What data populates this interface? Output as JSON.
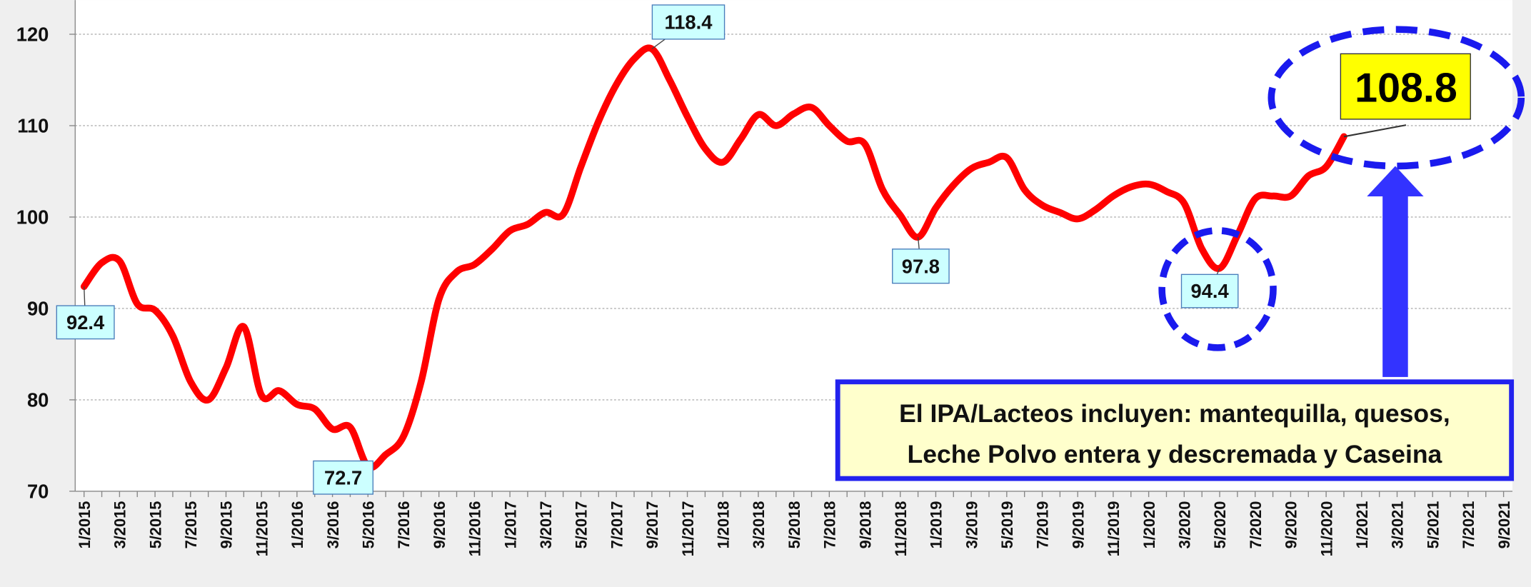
{
  "chart_data": {
    "type": "line",
    "categories": [
      "1/2015",
      null,
      "3/2015",
      null,
      "5/2015",
      null,
      "7/2015",
      null,
      "9/2015",
      null,
      "11/2015",
      null,
      "1/2016",
      null,
      "3/2016",
      null,
      "5/2016",
      null,
      "7/2016",
      null,
      "9/2016",
      null,
      "11/2016",
      null,
      "1/2017",
      null,
      "3/2017",
      null,
      "5/2017",
      null,
      "7/2017",
      null,
      "9/2017",
      null,
      "11/2017",
      null,
      "1/2018",
      null,
      "3/2018",
      null,
      "5/2018",
      null,
      "7/2018",
      null,
      "9/2018",
      null,
      "11/2018",
      null,
      "1/2019",
      null,
      "3/2019",
      null,
      "5/2019",
      null,
      "7/2019",
      null,
      "9/2019",
      null,
      "11/2019",
      null,
      "1/2020",
      null,
      "3/2020",
      null,
      "5/2020",
      null,
      "7/2020",
      null,
      "9/2020",
      null,
      "11/2020",
      null,
      "1/2021",
      null,
      "3/2021",
      null,
      "5/2021",
      null,
      "7/2021",
      null,
      "9/2021"
    ],
    "series": [
      {
        "color": "#ff0000",
        "values": [
          92.4,
          95,
          95.2,
          90.5,
          89.8,
          87,
          82,
          80,
          83.5,
          88,
          80.5,
          81,
          79.5,
          79,
          76.8,
          77,
          72.7,
          74,
          76,
          82,
          91,
          94,
          94.8,
          96.5,
          98.5,
          99.2,
          100.5,
          100.3,
          105.5,
          110.5,
          114.5,
          117.3,
          118.4,
          115,
          111,
          107.5,
          106,
          108.5,
          111.2,
          110,
          111.3,
          112,
          110,
          108.3,
          108,
          103,
          100.2,
          97.8,
          101,
          103.5,
          105.3,
          106,
          106.5,
          103,
          101.3,
          100.5,
          99.8,
          100.8,
          102.3,
          103.3,
          103.6,
          102.8,
          101.5,
          96.5,
          94.4,
          98,
          102,
          102.3,
          102.3,
          104.5,
          105.5,
          108.8,
          null,
          null,
          null,
          null,
          null,
          null,
          null,
          null,
          null
        ]
      }
    ],
    "ylim": [
      70,
      120
    ],
    "yticks": [
      70,
      80,
      90,
      100,
      110,
      120
    ],
    "grid": true,
    "annotations": [
      "El IPA/Lacteos incluyen: mantequilla, quesos,",
      "Leche Polvo entera y descremada y Caseina"
    ]
  }
}
